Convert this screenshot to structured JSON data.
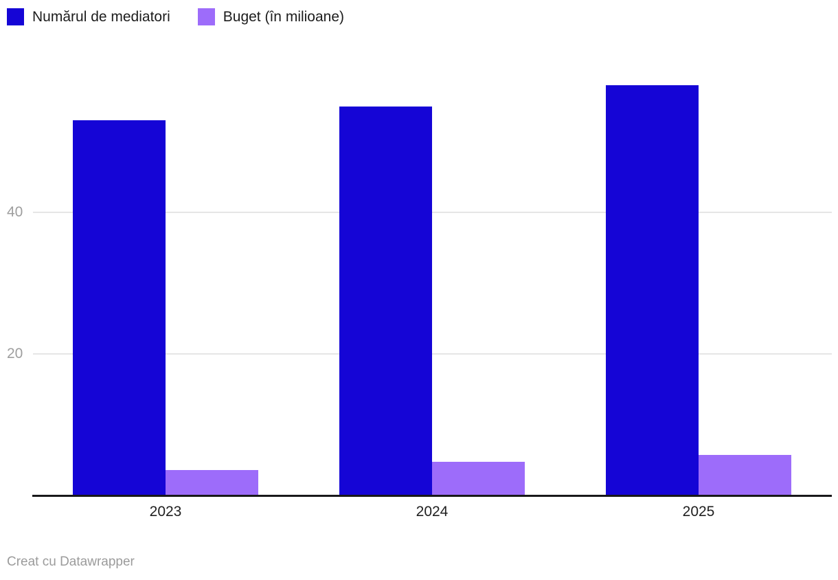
{
  "legend": {
    "items": [
      {
        "label": "Numărul de mediatori",
        "color": "#1505d6"
      },
      {
        "label": "Buget (în milioane)",
        "color": "#9d6cfa"
      }
    ]
  },
  "footer": {
    "attribution": "Creat cu Datawrapper"
  },
  "colors": {
    "series_blue": "#1505d6",
    "series_purple": "#9d6cfa",
    "gridline": "#e6e6e6",
    "axis_line": "#18181a",
    "ytick_label": "#9e9e9e",
    "xtick_label": "#202020",
    "attribution_text": "#9b9b9b",
    "background": "#ffffff"
  },
  "chart_data": {
    "type": "bar",
    "categories": [
      "2023",
      "2024",
      "2025"
    ],
    "series": [
      {
        "name": "Numărul de mediatori",
        "color": "#1505d6",
        "values": [
          53,
          55,
          58
        ]
      },
      {
        "name": "Buget (în milioane)",
        "color": "#9d6cfa",
        "values": [
          3.6,
          4.8,
          5.7
        ]
      }
    ],
    "title": "",
    "xlabel": "",
    "ylabel": "",
    "ylim": [
      0,
      60
    ],
    "yticks": [
      20,
      40
    ],
    "grid": true,
    "legend_position": "top-left",
    "attribution": "Creat cu Datawrapper"
  }
}
